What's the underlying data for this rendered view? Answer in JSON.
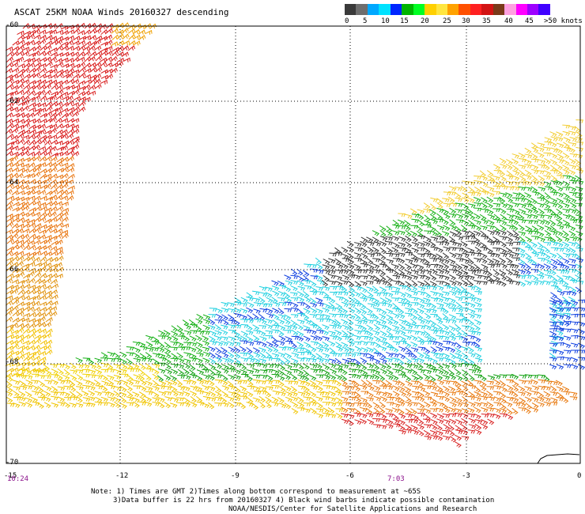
{
  "header": {
    "title": "ASCAT 25KM NOAA Winds 20160327 descending"
  },
  "legend": {
    "colors": [
      "#3a3a3a",
      "#6e6e6e",
      "#00a8ff",
      "#00e2ff",
      "#0026ff",
      "#00b400",
      "#00ff22",
      "#ffd000",
      "#ffe640",
      "#ffa200",
      "#ff5000",
      "#ff2020",
      "#d21414",
      "#7a3a1a",
      "#ffa0e0",
      "#ff00ff",
      "#9d00ff",
      "#4000ff"
    ],
    "labels": [
      "0",
      "5",
      "10",
      "15",
      "20",
      "25",
      "30",
      "35",
      "40",
      "45",
      ">50 knots"
    ]
  },
  "axes": {
    "lat_labels": [
      "-60",
      "-62",
      "-64",
      "-66",
      "-68",
      "-70"
    ],
    "lon_labels": [
      "-15",
      "-12",
      "-9",
      "-6",
      "-3",
      "0"
    ]
  },
  "times": [
    "10:24",
    "7:03"
  ],
  "notes": {
    "line1": "Note: 1) Times are GMT 2)Times along bottom correspond to measurement at ~65S",
    "line2": "3)Data buffer is 22 hrs from 20160327 4) Black wind barbs indicate possible contamination",
    "line3": "NOAA/NESDIS/Center for Satellite Applications and Research"
  }
}
